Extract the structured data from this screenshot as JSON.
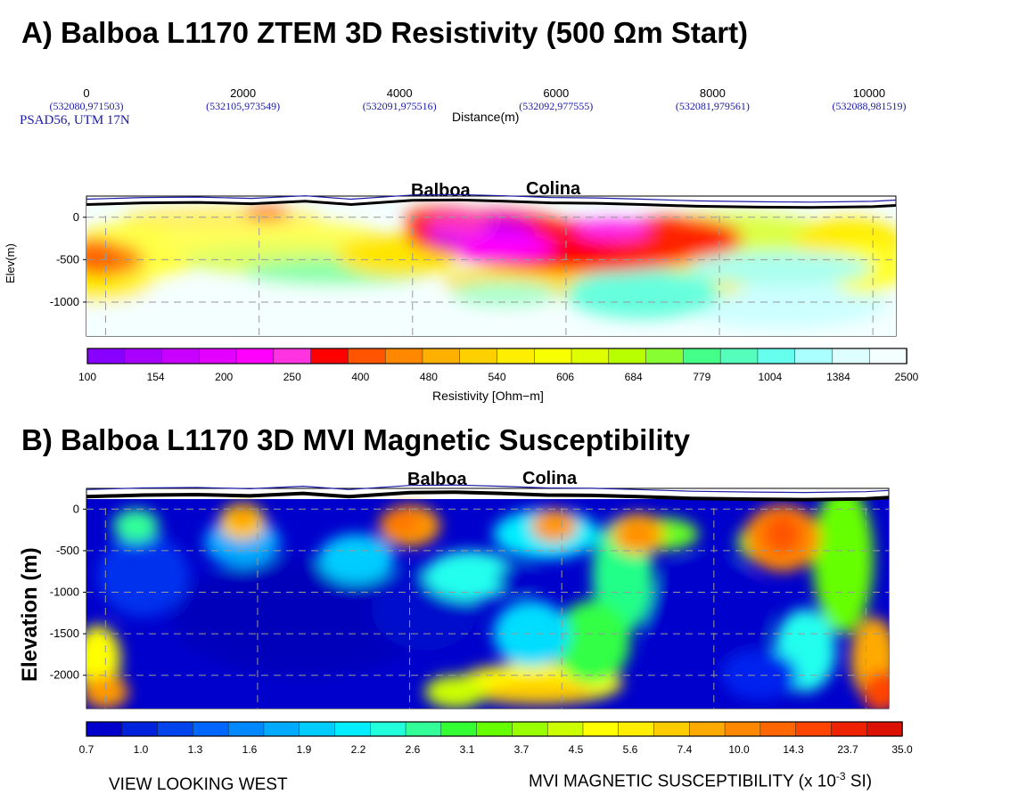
{
  "panel_a": {
    "title": "A) Balboa L1170 ZTEM 3D Resistivity (500 Ωm Start)",
    "projection": "PSAD56, UTM 17N",
    "distance_label": "Distance(m)",
    "distance_ticks": [
      {
        "value": "0",
        "coord": "(532080,971503)"
      },
      {
        "value": "2000",
        "coord": "(532105,973549)"
      },
      {
        "value": "4000",
        "coord": "(532091,975516)"
      },
      {
        "value": "6000",
        "coord": "(532092,977555)"
      },
      {
        "value": "8000",
        "coord": "(532081,979561)"
      },
      {
        "value": "10000",
        "coord": "(532088,981519)"
      }
    ],
    "ylabel": "Elev(m)",
    "markers": [
      "Balboa",
      "Colina"
    ],
    "colorbar_label": "Resistivity [Ohm−m]"
  },
  "panel_b": {
    "title": "B) Balboa L1170  3D MVI Magnetic Susceptibility",
    "ylabel": "Elevation (m)",
    "markers": [
      "Balboa",
      "Colina"
    ],
    "view_label": "VIEW LOOKING WEST",
    "colorbar_label": "MVI MAGNETIC SUSCEPTIBILITY  (x 10",
    "colorbar_label_exp": "-3",
    "colorbar_label_unit": " SI)"
  },
  "chart_data": [
    {
      "type": "heatmap",
      "title": "A) Balboa L1170 ZTEM 3D Resistivity (500 Ωm Start)",
      "xlabel": "Distance(m)",
      "ylabel": "Elev(m)",
      "xlim": [
        -250,
        10300
      ],
      "ylim": [
        -1400,
        250
      ],
      "x_ticks": [
        0,
        2000,
        4000,
        6000,
        8000,
        10000
      ],
      "y_ticks": [
        0,
        -500,
        -1000
      ],
      "grid": true,
      "colorbar": {
        "label": "Resistivity [Ohm−m]",
        "tick_labels": [
          "100",
          "154",
          "200",
          "250",
          "400",
          "480",
          "540",
          "606",
          "684",
          "779",
          "1004",
          "1384",
          "2500"
        ],
        "colors": [
          "#8800ff",
          "#a800ff",
          "#c800ff",
          "#e400ff",
          "#ff00ff",
          "#ff33e0",
          "#ff0000",
          "#ff5500",
          "#ff8800",
          "#ffb000",
          "#ffd000",
          "#ffee00",
          "#f8ff00",
          "#ddff00",
          "#b8ff00",
          "#88ff33",
          "#44ff88",
          "#55ffbb",
          "#66ffee",
          "#aaffff",
          "#ddffff",
          "#f4ffff"
        ]
      },
      "anomalies": [
        {
          "label": "Balboa",
          "x": 4900,
          "resistivity_range": "150-250",
          "depth_range": [
            -100,
            -600
          ]
        },
        {
          "label": "Colina",
          "x": 6700,
          "resistivity_range": "300-400",
          "depth_range": [
            -100,
            -650
          ]
        }
      ]
    },
    {
      "type": "heatmap",
      "title": "B) Balboa L1170  3D MVI Magnetic Susceptibility",
      "xlabel": "",
      "ylabel": "Elevation (m)",
      "xlim": [
        -250,
        10300
      ],
      "ylim": [
        -2400,
        250
      ],
      "x_ticks": [
        0,
        2000,
        4000,
        6000,
        8000,
        10000
      ],
      "y_ticks": [
        0,
        -500,
        -1000,
        -1500,
        -2000
      ],
      "grid": true,
      "colorbar": {
        "label": "MVI MAGNETIC SUSCEPTIBILITY  (x 10-3 SI)",
        "tick_labels": [
          "0.7",
          "1.0",
          "1.3",
          "1.6",
          "1.9",
          "2.2",
          "2.6",
          "3.1",
          "3.7",
          "4.5",
          "5.6",
          "7.4",
          "10.0",
          "14.3",
          "23.7",
          "35.0"
        ],
        "colors": [
          "#0000cc",
          "#0022dd",
          "#0044ee",
          "#0066ff",
          "#0088ff",
          "#00aaff",
          "#00ccff",
          "#00eeff",
          "#22ffdd",
          "#33ff99",
          "#33ff33",
          "#66ff00",
          "#99ff00",
          "#ccff00",
          "#ffff00",
          "#ffee00",
          "#ffcc00",
          "#ffaa00",
          "#ff8800",
          "#ff6600",
          "#ff4400",
          "#ee2200",
          "#dd1100"
        ]
      },
      "anomalies": [
        {
          "label": "Balboa",
          "x": 4900
        },
        {
          "label": "Colina",
          "x": 6300
        }
      ]
    }
  ]
}
